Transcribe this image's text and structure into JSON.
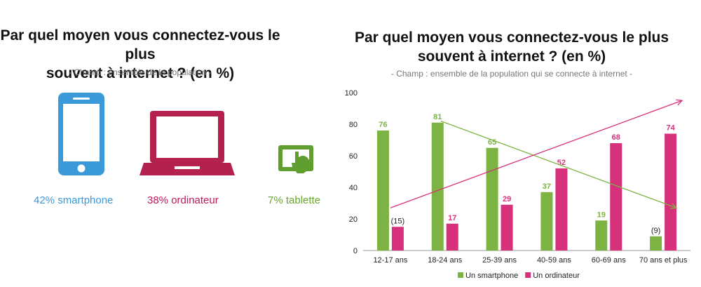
{
  "left": {
    "title_line1": "Par quel moyen vous connectez-vous le plus",
    "title_line2": "souvent à internet ? (en %)",
    "subtitle": "- Champ : ensemble de la population -",
    "devices": [
      {
        "label": "42% smartphone",
        "icon": "smartphone-icon",
        "color": "#3a9ad9"
      },
      {
        "label": "38% ordinateur",
        "icon": "laptop-icon",
        "color": "#b5214f"
      },
      {
        "label": "7% tablette",
        "icon": "tablet-touch-icon",
        "color": "#5f9e2f"
      }
    ]
  },
  "right": {
    "title_line1": "Par quel moyen vous connectez-vous le plus",
    "title_line2": "souvent à internet ? (en %)",
    "subtitle": "- Champ : ensemble de la population qui se connecte à internet  -"
  },
  "chart_data": {
    "type": "bar",
    "categories": [
      "12-17 ans",
      "18-24 ans",
      "25-39 ans",
      "40-59 ans",
      "60-69 ans",
      "70 ans et plus"
    ],
    "series": [
      {
        "name": "Un smartphone",
        "color": "#7cb342",
        "values": [
          76,
          81,
          65,
          37,
          19,
          9
        ],
        "labels": [
          "76",
          "81",
          "65",
          "37",
          "19",
          "(9)"
        ]
      },
      {
        "name": "Un ordinateur",
        "color": "#d6317a",
        "values": [
          15,
          17,
          29,
          52,
          68,
          74
        ],
        "labels": [
          "(15)",
          "17",
          "29",
          "52",
          "68",
          "74"
        ]
      }
    ],
    "ylim": [
      0,
      100
    ],
    "yticks": [
      0,
      20,
      40,
      60,
      80,
      100
    ],
    "legend_position": "bottom",
    "trend_lines": [
      {
        "series": "Un smartphone",
        "direction": "decreasing",
        "color": "#7cb342"
      },
      {
        "series": "Un ordinateur",
        "direction": "increasing",
        "color": "#d6317a"
      }
    ]
  }
}
